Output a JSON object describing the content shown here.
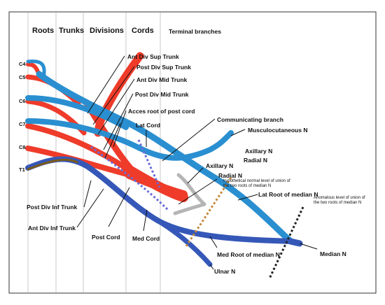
{
  "headers": {
    "roots": "Roots",
    "trunks": "Trunks",
    "divisions": "Divisions",
    "cords": "Cords",
    "terminal": "Terminal branches"
  },
  "roots": [
    "C4",
    "C5",
    "C6",
    "C7",
    "C8",
    "T1"
  ],
  "labels": {
    "ant_div_sup": "Ant Div Sup Trunk",
    "post_div_sup": "Post Div Sup Trunk",
    "ant_div_mid": "Ant Div Mid Trunk",
    "post_div_mid": "Post Div Mid Trunk",
    "acces_root": "Acces root of post cord",
    "communicating": "Communicating branch",
    "lat_cord": "Lat Cord",
    "musculocutaneous": "Musculocutaneous N",
    "axillary_1": "Axillary N",
    "radial_1": "Radial N",
    "axillary_2": "Axillary N",
    "radial_2": "Radial N",
    "hypothetical_1": "hypothetical normal level of union of",
    "hypothetical_2": "the two roots of median N",
    "lat_root_median": "Lat Root of median N",
    "anomalous_1": "Anomalous level of union of",
    "anomalous_2": "the two roots of median N",
    "post_div_inf": "Post Div Inf Trunk",
    "ant_div_inf": "Ant Div Inf Trunk",
    "post_cord": "Post Cord",
    "med_cord": "Med Cord",
    "med_root_median": "Med Root of median N",
    "median": "Median N",
    "ulnar": "Ulnar N"
  },
  "colors": {
    "anterior": "#2a8fd0",
    "anterior_dark": "#3558b8",
    "posterior": "#ef3b2a",
    "communicating": "#b5b5b5",
    "inferior_trunk_overlay": "#7a5a1a"
  }
}
